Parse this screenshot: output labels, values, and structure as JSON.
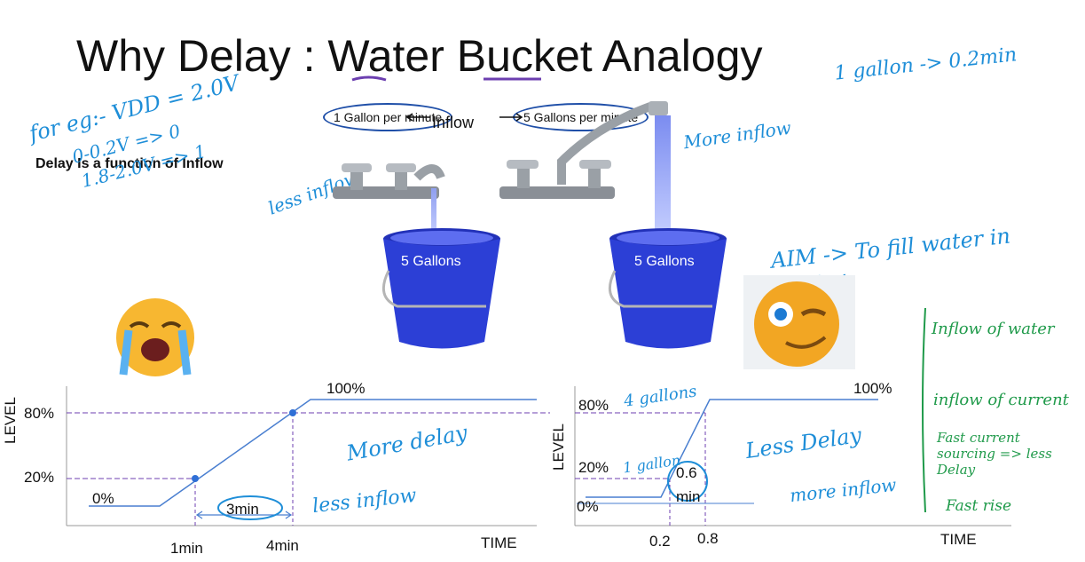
{
  "slide": {
    "title": "Why Delay : Water Bucket Analogy",
    "subtitle": "Delay Is a function of Inflow"
  },
  "buckets": {
    "inflow_label": "Inflow",
    "left_rate": "1 Gallon per minute",
    "right_rate": "5 Gallons per minute",
    "left_capacity": "5 Gallons",
    "right_capacity": "5 Gallons"
  },
  "graph_left": {
    "y_axis_label": "LEVEL",
    "x_axis_label": "TIME",
    "level_80": "80%",
    "level_20": "20%",
    "level_0": "0%",
    "level_100": "100%",
    "t1": "1min",
    "t2": "4min",
    "delta": "3min"
  },
  "graph_right": {
    "y_axis_label": "LEVEL",
    "x_axis_label": "TIME",
    "level_80": "80%",
    "level_20": "20%",
    "level_0": "0%",
    "level_100": "100%",
    "t1": "0.2",
    "t2": "0.8",
    "delta": "0.6",
    "delta_unit": "min"
  },
  "annotations": {
    "vdd": "for eg:- VDD = 2.0V",
    "low_ratio": "0-0.2V => 0",
    "high_ratio": "1.8-2.0V => 1",
    "gallon_rate": "1 gallon -> 0.2min",
    "more_inflow_top": "More inflow",
    "less_inflow_top": "less inflow",
    "aim": "AIM -> To fill water in Bucket",
    "more_delay": "More delay",
    "less_inflow_bottom": "less inflow",
    "less_delay": "Less Delay",
    "more_inflow_bottom": "more inflow",
    "four_gallons": "4 gallons",
    "one_gallon": "1 gallon",
    "note1": "Inflow of water",
    "note2": "inflow of current",
    "note3": "Fast current sourcing => less Delay",
    "note4": "Fast rise"
  },
  "colors": {
    "bucket": "#2c3fd6",
    "ink_blue": "#1e8ed8",
    "ink_green": "#1f9a4a",
    "dash": "#6c3fb0",
    "line": "#4a7fd0"
  },
  "icons": [
    "crying-emoji-icon",
    "winking-emoji-icon",
    "faucet-icon",
    "bucket-icon"
  ]
}
